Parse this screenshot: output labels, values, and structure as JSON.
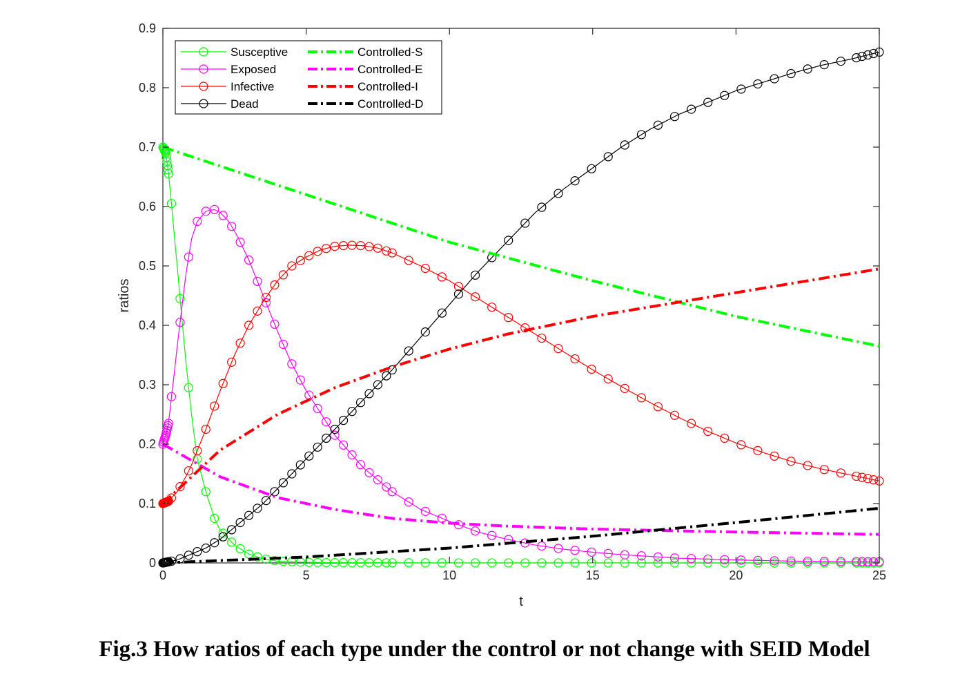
{
  "caption": "Fig.3 How ratios of each type under the control or not change with SEID Model",
  "chart_data": {
    "type": "line",
    "title": "",
    "xlabel": "t",
    "ylabel": "ratios",
    "xlim": [
      0,
      25
    ],
    "ylim": [
      0,
      0.9
    ],
    "xticks": [
      0,
      5,
      10,
      15,
      20,
      25
    ],
    "yticks": [
      0,
      0.1,
      0.2,
      0.3,
      0.4,
      0.5,
      0.6,
      0.7,
      0.8,
      0.9
    ],
    "xtick_labels": [
      "0",
      "5",
      "10",
      "15",
      "20",
      "25"
    ],
    "ytick_labels": [
      "0",
      "0.1",
      "0.2",
      "0.3",
      "0.4",
      "0.5",
      "0.6",
      "0.7",
      "0.8",
      "0.9"
    ],
    "grid": false,
    "legend_position": "top-left",
    "legend_columns": 2,
    "series": [
      {
        "name": "Susceptive",
        "color": "#00ff00",
        "style": "solid-circle-markers",
        "points": [
          [
            0,
            0.7
          ],
          [
            0.1,
            0.69
          ],
          [
            0.2,
            0.655
          ],
          [
            0.3,
            0.605
          ],
          [
            0.4,
            0.55
          ],
          [
            0.5,
            0.5
          ],
          [
            0.6,
            0.445
          ],
          [
            0.8,
            0.34
          ],
          [
            1,
            0.25
          ],
          [
            1.2,
            0.175
          ],
          [
            1.5,
            0.12
          ],
          [
            1.8,
            0.075
          ],
          [
            2,
            0.055
          ],
          [
            2.5,
            0.03
          ],
          [
            3,
            0.015
          ],
          [
            3.5,
            0.007
          ],
          [
            4,
            0.003
          ],
          [
            5,
            0.001
          ],
          [
            6,
            0.0005
          ],
          [
            8,
            0.0002
          ],
          [
            10,
            0.0001
          ],
          [
            15,
            5e-05
          ],
          [
            20,
            2e-05
          ],
          [
            25,
            1e-05
          ]
        ]
      },
      {
        "name": "Exposed",
        "color": "#ff00ff",
        "style": "solid-circle-markers",
        "points": [
          [
            0,
            0.2
          ],
          [
            0.1,
            0.215
          ],
          [
            0.2,
            0.235
          ],
          [
            0.3,
            0.28
          ],
          [
            0.4,
            0.32
          ],
          [
            0.5,
            0.365
          ],
          [
            0.6,
            0.405
          ],
          [
            0.8,
            0.485
          ],
          [
            1,
            0.545
          ],
          [
            1.2,
            0.575
          ],
          [
            1.5,
            0.592
          ],
          [
            1.8,
            0.595
          ],
          [
            2,
            0.59
          ],
          [
            2.3,
            0.575
          ],
          [
            2.6,
            0.55
          ],
          [
            3,
            0.51
          ],
          [
            3.5,
            0.45
          ],
          [
            4,
            0.39
          ],
          [
            4.5,
            0.335
          ],
          [
            5,
            0.29
          ],
          [
            6,
            0.215
          ],
          [
            7,
            0.16
          ],
          [
            8,
            0.12
          ],
          [
            9,
            0.09
          ],
          [
            10,
            0.07
          ],
          [
            11,
            0.052
          ],
          [
            12,
            0.04
          ],
          [
            13,
            0.03
          ],
          [
            14,
            0.023
          ],
          [
            15,
            0.018
          ],
          [
            16,
            0.014
          ],
          [
            17,
            0.011
          ],
          [
            18,
            0.008
          ],
          [
            20,
            0.005
          ],
          [
            22,
            0.003
          ],
          [
            25,
            0.002
          ]
        ]
      },
      {
        "name": "Infective",
        "color": "#ff0000",
        "style": "solid-circle-markers",
        "points": [
          [
            0,
            0.1
          ],
          [
            0.2,
            0.104
          ],
          [
            0.5,
            0.12
          ],
          [
            0.8,
            0.145
          ],
          [
            1,
            0.165
          ],
          [
            1.5,
            0.225
          ],
          [
            2,
            0.29
          ],
          [
            2.5,
            0.35
          ],
          [
            3,
            0.4
          ],
          [
            3.5,
            0.44
          ],
          [
            4,
            0.475
          ],
          [
            4.5,
            0.5
          ],
          [
            5,
            0.515
          ],
          [
            5.5,
            0.527
          ],
          [
            6,
            0.533
          ],
          [
            6.5,
            0.535
          ],
          [
            7,
            0.534
          ],
          [
            7.5,
            0.53
          ],
          [
            8,
            0.522
          ],
          [
            9,
            0.5
          ],
          [
            10,
            0.475
          ],
          [
            11,
            0.445
          ],
          [
            12,
            0.415
          ],
          [
            13,
            0.385
          ],
          [
            14,
            0.355
          ],
          [
            15,
            0.325
          ],
          [
            16,
            0.297
          ],
          [
            17,
            0.27
          ],
          [
            18,
            0.245
          ],
          [
            19,
            0.222
          ],
          [
            20,
            0.202
          ],
          [
            21,
            0.185
          ],
          [
            22,
            0.17
          ],
          [
            23,
            0.158
          ],
          [
            24,
            0.148
          ],
          [
            25,
            0.138
          ]
        ]
      },
      {
        "name": "Dead",
        "color": "#000000",
        "style": "solid-circle-markers",
        "points": [
          [
            0,
            0
          ],
          [
            0.5,
            0.005
          ],
          [
            1,
            0.015
          ],
          [
            1.5,
            0.025
          ],
          [
            2,
            0.04
          ],
          [
            2.5,
            0.06
          ],
          [
            3,
            0.08
          ],
          [
            3.5,
            0.1
          ],
          [
            4,
            0.125
          ],
          [
            4.5,
            0.15
          ],
          [
            5,
            0.175
          ],
          [
            5.5,
            0.2
          ],
          [
            6,
            0.225
          ],
          [
            6.5,
            0.25
          ],
          [
            7,
            0.275
          ],
          [
            7.5,
            0.3
          ],
          [
            8,
            0.325
          ],
          [
            9,
            0.38
          ],
          [
            10,
            0.435
          ],
          [
            11,
            0.49
          ],
          [
            12,
            0.54
          ],
          [
            13,
            0.59
          ],
          [
            14,
            0.63
          ],
          [
            15,
            0.665
          ],
          [
            16,
            0.7
          ],
          [
            17,
            0.73
          ],
          [
            18,
            0.755
          ],
          [
            19,
            0.775
          ],
          [
            20,
            0.795
          ],
          [
            21,
            0.81
          ],
          [
            22,
            0.825
          ],
          [
            23,
            0.838
          ],
          [
            24,
            0.848
          ],
          [
            25,
            0.86
          ]
        ]
      },
      {
        "name": "Controlled-S",
        "color": "#00ff00",
        "style": "dash-dot",
        "points": [
          [
            0,
            0.7
          ],
          [
            5,
            0.62
          ],
          [
            10,
            0.54
          ],
          [
            15,
            0.475
          ],
          [
            20,
            0.415
          ],
          [
            25,
            0.365
          ]
        ]
      },
      {
        "name": "Controlled-E",
        "color": "#ff00ff",
        "style": "dash-dot",
        "points": [
          [
            0,
            0.2
          ],
          [
            2,
            0.145
          ],
          [
            4,
            0.11
          ],
          [
            6,
            0.09
          ],
          [
            8,
            0.075
          ],
          [
            10,
            0.067
          ],
          [
            12,
            0.062
          ],
          [
            15,
            0.057
          ],
          [
            20,
            0.052
          ],
          [
            25,
            0.048
          ]
        ]
      },
      {
        "name": "Controlled-I",
        "color": "#ff0000",
        "style": "dash-dot",
        "points": [
          [
            0,
            0.1
          ],
          [
            2,
            0.19
          ],
          [
            4,
            0.25
          ],
          [
            6,
            0.295
          ],
          [
            8,
            0.33
          ],
          [
            10,
            0.36
          ],
          [
            12,
            0.385
          ],
          [
            15,
            0.415
          ],
          [
            20,
            0.455
          ],
          [
            25,
            0.495
          ]
        ]
      },
      {
        "name": "Controlled-D",
        "color": "#000000",
        "style": "dash-dot",
        "points": [
          [
            0,
            0
          ],
          [
            5,
            0.01
          ],
          [
            10,
            0.025
          ],
          [
            15,
            0.045
          ],
          [
            20,
            0.068
          ],
          [
            25,
            0.092
          ]
        ]
      }
    ]
  }
}
